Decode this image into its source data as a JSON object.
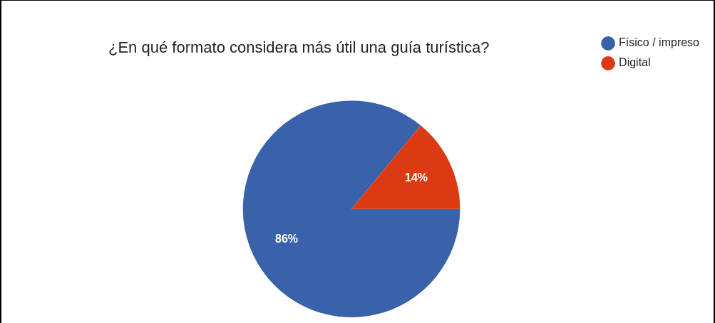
{
  "chart_data": {
    "type": "pie",
    "title": "¿En qué formato considera más útil una guía turística?",
    "categories": [
      "Físico / impreso",
      "Digital"
    ],
    "values": [
      86,
      14
    ],
    "colors": [
      "#3a62ab",
      "#dc3a12"
    ],
    "value_labels": [
      "86%",
      "14%"
    ],
    "legend": "top right"
  }
}
